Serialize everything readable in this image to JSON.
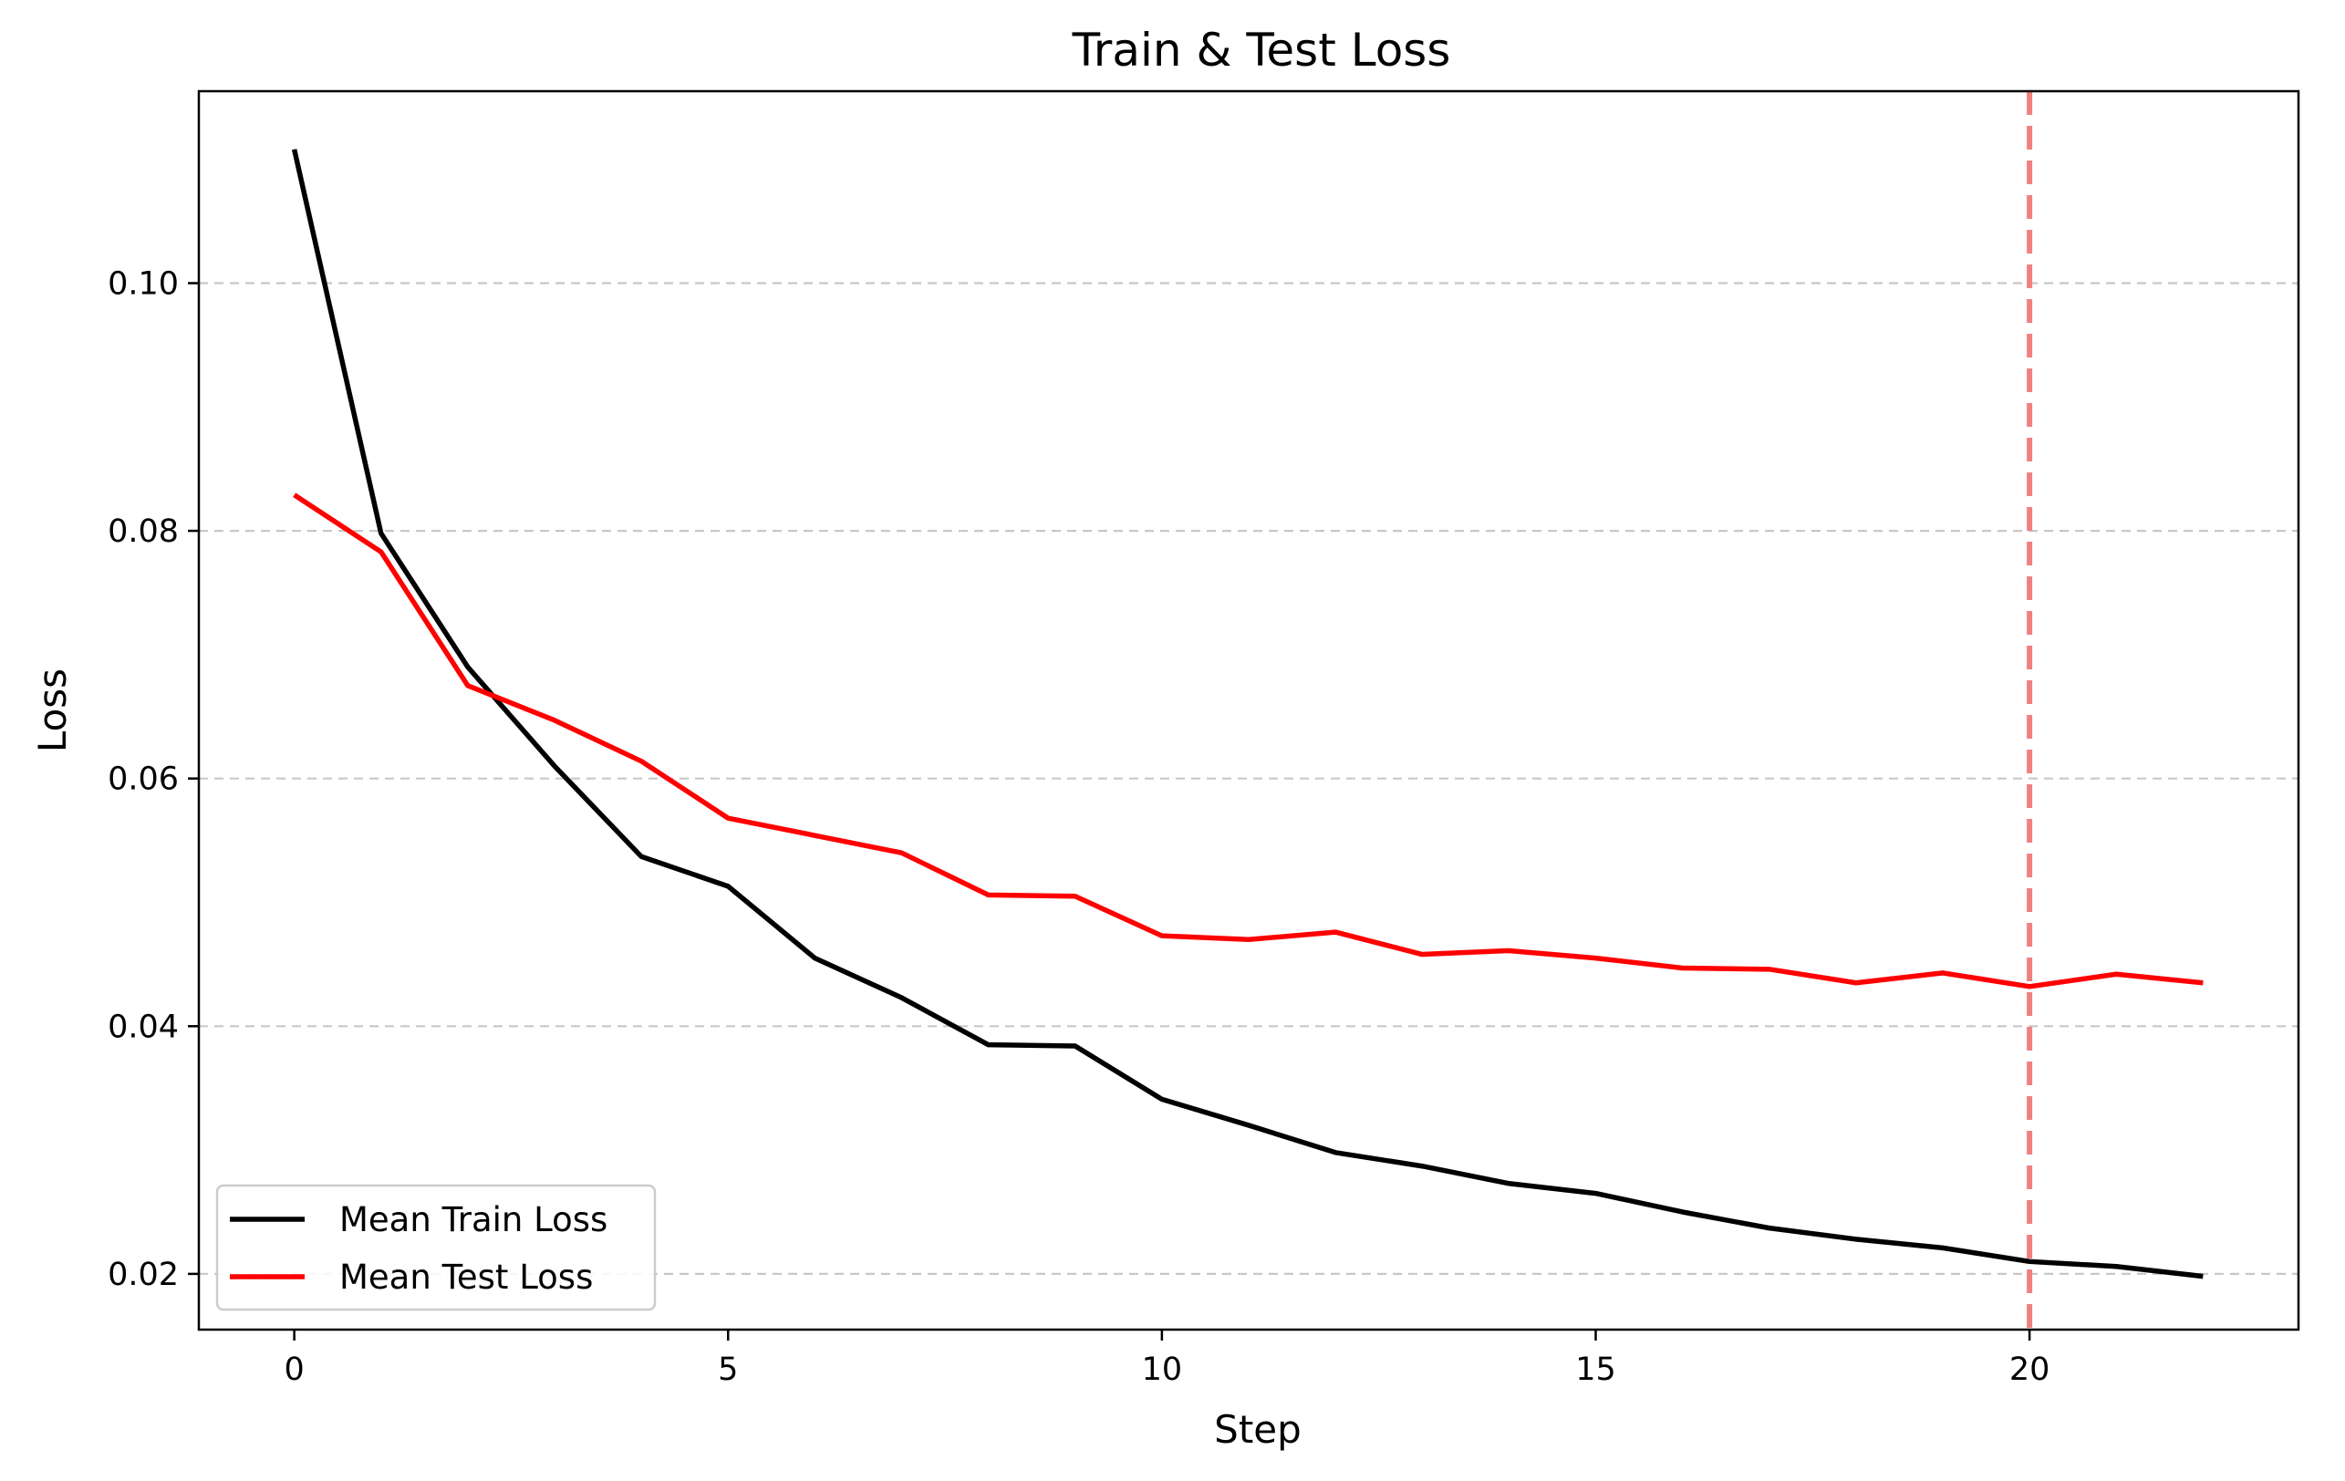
{
  "chart_data": {
    "type": "line",
    "title": "Train & Test Loss",
    "xlabel": "Step",
    "ylabel": "Loss",
    "xlim": [
      -1.1,
      23.1
    ],
    "ylim": [
      0.0155,
      0.1155
    ],
    "x_ticks": [
      0,
      5,
      10,
      15,
      20
    ],
    "x_tick_labels": [
      "0",
      "5",
      "10",
      "15",
      "20"
    ],
    "y_ticks": [
      0.02,
      0.04,
      0.06,
      0.08,
      0.1
    ],
    "y_tick_labels": [
      "0.02",
      "0.04",
      "0.06",
      "0.08",
      "0.10"
    ],
    "grid": {
      "axis": "y",
      "style": "dashed"
    },
    "legend": {
      "placement": "lower-left"
    },
    "x": [
      0,
      1,
      2,
      3,
      4,
      5,
      6,
      7,
      8,
      9,
      10,
      11,
      12,
      13,
      14,
      15,
      16,
      17,
      18,
      19,
      20,
      21,
      22
    ],
    "series": [
      {
        "name": "Mean Train Loss",
        "color": "#000000",
        "values": [
          0.1108,
          0.0798,
          0.069,
          0.061,
          0.0537,
          0.0513,
          0.0455,
          0.0423,
          0.0385,
          0.0384,
          0.0341,
          0.032,
          0.0298,
          0.0287,
          0.0273,
          0.0265,
          0.025,
          0.0237,
          0.0228,
          0.0221,
          0.021,
          0.0206,
          0.0198
        ]
      },
      {
        "name": "Mean Test Loss",
        "color": "#ff0000",
        "values": [
          0.0829,
          0.0783,
          0.0675,
          0.0647,
          0.0614,
          0.0568,
          0.0554,
          0.054,
          0.0506,
          0.0505,
          0.0473,
          0.047,
          0.0476,
          0.0458,
          0.0461,
          0.0455,
          0.0447,
          0.0446,
          0.0435,
          0.0443,
          0.0432,
          0.0442,
          0.0435
        ]
      }
    ],
    "reference_lines": [
      {
        "axis": "x",
        "value": 20,
        "color": "#f08080",
        "style": "dashed"
      }
    ]
  }
}
